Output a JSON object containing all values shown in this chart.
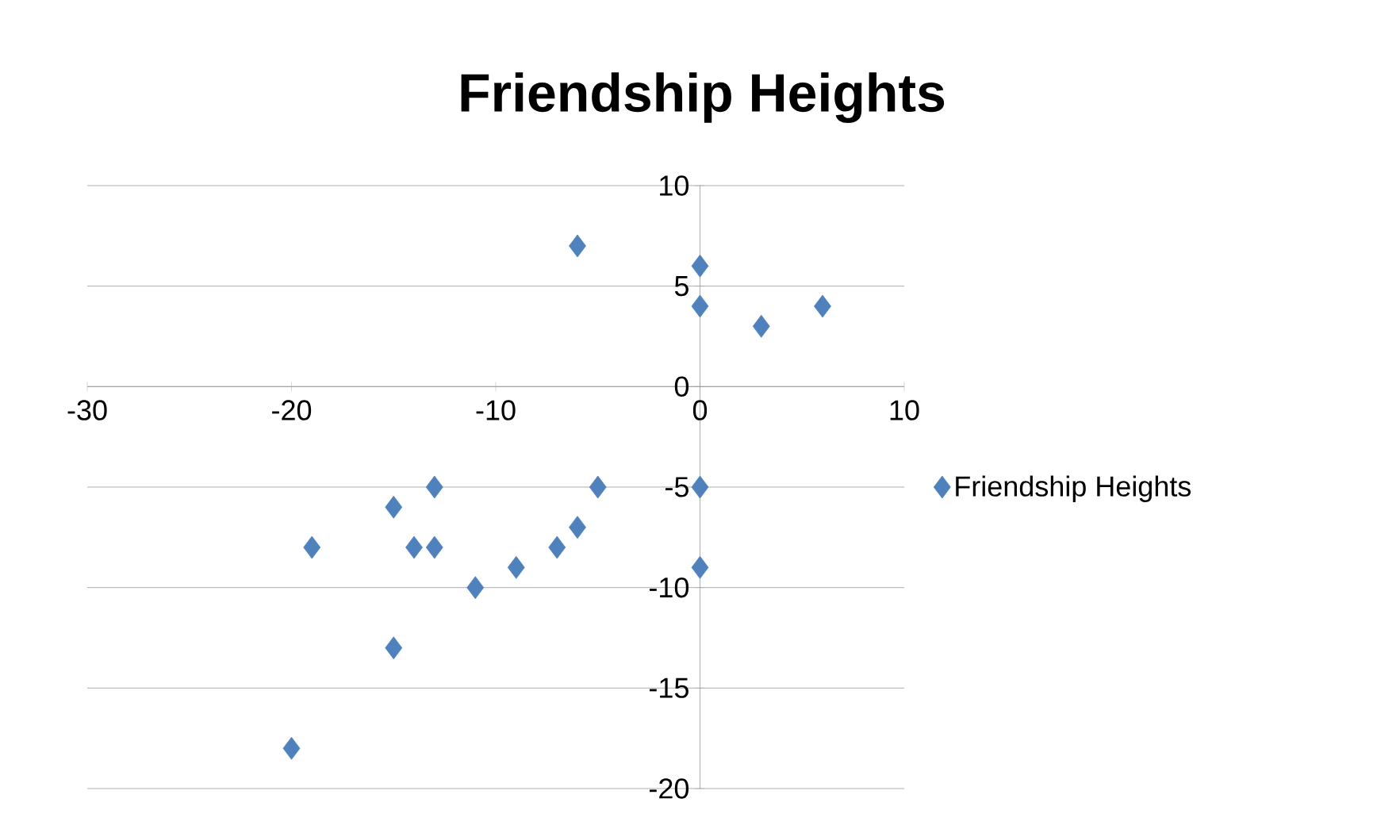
{
  "chart_data": {
    "type": "scatter",
    "title": "Friendship Heights",
    "series": [
      {
        "name": "Friendship Heights",
        "color": "#4f81bd",
        "x": [
          -6,
          0,
          0,
          3,
          6,
          -5,
          0,
          0,
          -13,
          -15,
          -19,
          -14,
          -13,
          -11,
          -9,
          -7,
          -6,
          -15,
          -20
        ],
        "values": [
          7,
          6,
          4,
          3,
          4,
          -5,
          -5,
          -9,
          -5,
          -6,
          -8,
          -8,
          -8,
          -10,
          -9,
          -8,
          -7,
          -13,
          -18
        ]
      }
    ],
    "xlim": [
      -30,
      10
    ],
    "ylim": [
      -20,
      10
    ],
    "xticks": [
      -30,
      -20,
      -10,
      0,
      10
    ],
    "yticks": [
      -20,
      -15,
      -10,
      -5,
      0,
      5,
      10
    ],
    "grid": "y",
    "legend": "right",
    "marker": "diamond"
  }
}
